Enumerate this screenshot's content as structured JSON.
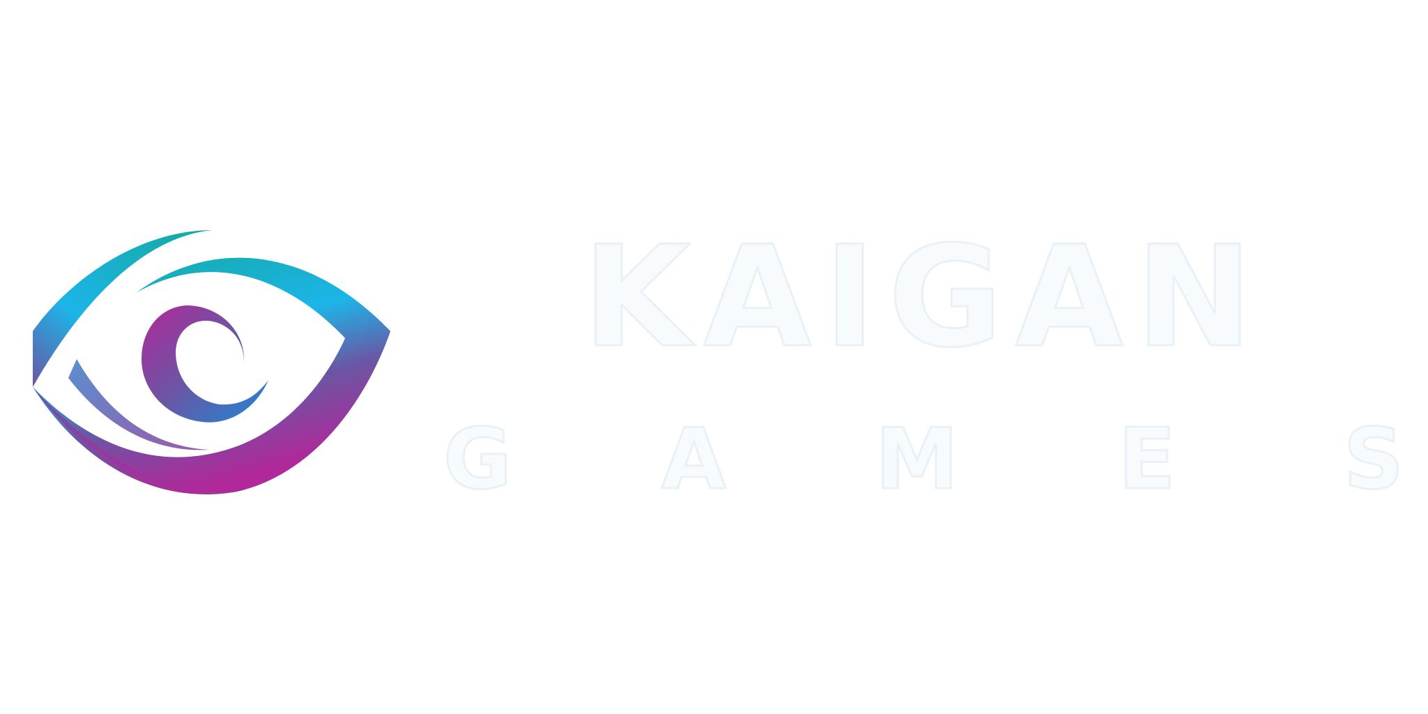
{
  "brand": {
    "name": "KAIGAN",
    "subtitle": "GAMES",
    "subtitle_letters": [
      "G",
      "A",
      "M",
      "E",
      "S"
    ],
    "mark_icon": "eye-swirl-logo-icon"
  },
  "colors": {
    "background": "#ffffff",
    "teal": "#13a89e",
    "cyan": "#1cb5e8",
    "blue": "#1e88d6",
    "purple": "#6a56a4",
    "magenta": "#b0289a",
    "wordmark_fill": "#f7fbfd",
    "wordmark_stroke": "#e9f1f6"
  }
}
